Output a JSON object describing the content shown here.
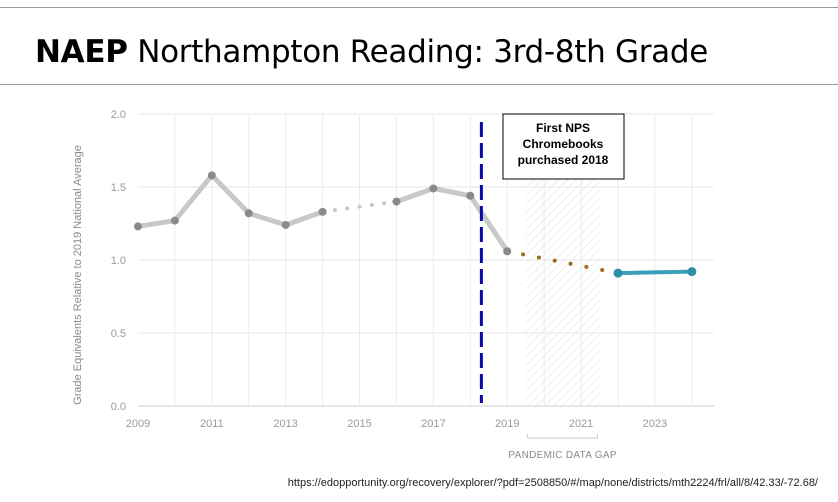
{
  "header": {
    "title_bold": "NAEP",
    "title_rest": " Northampton Reading: 3rd-8th Grade"
  },
  "chart_data": {
    "type": "line",
    "ylabel": "Grade Equivalents Relative to 2019 National Average",
    "xlim": [
      2009,
      2024
    ],
    "ylim": [
      0,
      2.0
    ],
    "y_ticks": [
      "0.0",
      "0.5",
      "1.0",
      "1.5",
      "2.0"
    ],
    "x_ticks": [
      "2009",
      "2011",
      "2013",
      "2015",
      "2017",
      "2019",
      "2021",
      "2023"
    ],
    "grid": true,
    "series": [
      {
        "style": "solid-gray",
        "color": "#c8c8c8",
        "x": [
          2009,
          2010,
          2011,
          2012,
          2013,
          2014
        ],
        "y": [
          1.23,
          1.27,
          1.58,
          1.32,
          1.24,
          1.33
        ]
      },
      {
        "style": "dotted-gray",
        "color": "#c8c8c8",
        "x": [
          2014,
          2015,
          2016
        ],
        "y": [
          1.33,
          1.37,
          1.4
        ]
      },
      {
        "style": "solid-gray",
        "color": "#c8c8c8",
        "x": [
          2016,
          2017,
          2018,
          2019
        ],
        "y": [
          1.4,
          1.49,
          1.44,
          1.06
        ]
      },
      {
        "style": "dotted-brown",
        "color": "#a0691e",
        "x": [
          2019,
          2022
        ],
        "y": [
          1.06,
          0.91
        ]
      },
      {
        "style": "solid-teal",
        "color": "#3a9fb8",
        "x": [
          2022,
          2024
        ],
        "y": [
          0.91,
          0.92
        ]
      }
    ],
    "gap_region": {
      "x_start": 2019.5,
      "x_end": 2021.5,
      "label": "PANDEMIC DATA GAP"
    },
    "annotation": {
      "x": 2018.3,
      "line_color": "#0a0aa8",
      "text_lines": [
        "First NPS",
        "Chromebooks",
        "purchased 2018"
      ]
    }
  },
  "source_url": "https://edopportunity.org/recovery/explorer/?pdf=2508850/#/map/none/districts/mth2224/frl/all/8/42.33/-72.68/"
}
